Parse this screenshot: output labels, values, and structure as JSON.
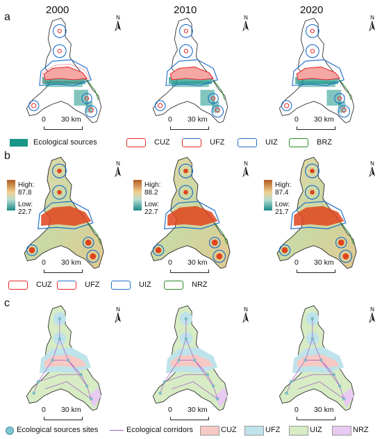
{
  "years": [
    "2000",
    "2010",
    "2020"
  ],
  "panels": {
    "a": {
      "letter": "a",
      "legend": {
        "ecological_sources": "Ecological sources",
        "zones": [
          "CUZ",
          "UFZ",
          "UIZ",
          "BRZ"
        ]
      }
    },
    "b": {
      "letter": "b",
      "ranges": [
        {
          "high": "High: 87.8",
          "low": "Low: 22.7"
        },
        {
          "high": "High: 88.2",
          "low": "Low: 22.7"
        },
        {
          "high": "High: 87.4",
          "low": "Low: 21.7"
        }
      ],
      "legend": {
        "zones": [
          "CUZ",
          "UFZ",
          "UIZ",
          "NRZ"
        ]
      }
    },
    "c": {
      "letter": "c",
      "legend": {
        "sites": "Ecological sources sites",
        "corridors": "Ecological corridors",
        "zones": [
          "CUZ",
          "UFZ",
          "UIZ",
          "NRZ"
        ]
      }
    }
  },
  "scale_bar": {
    "zero": "0",
    "distance": "30 km"
  },
  "north_label": "N",
  "colors": {
    "cuz": "#e8262b",
    "ufz": "#e8262b",
    "uiz": "#1f6fc9",
    "brz": "#2a8a2a",
    "eco_source": "#1a9688",
    "cuz_fill": "#f6c9c5",
    "ufz_fill": "#bfe3ea",
    "uiz_fill": "#d7ecc4",
    "nrz_fill": "#e7c9f1",
    "corridor": "#a15cc4"
  }
}
